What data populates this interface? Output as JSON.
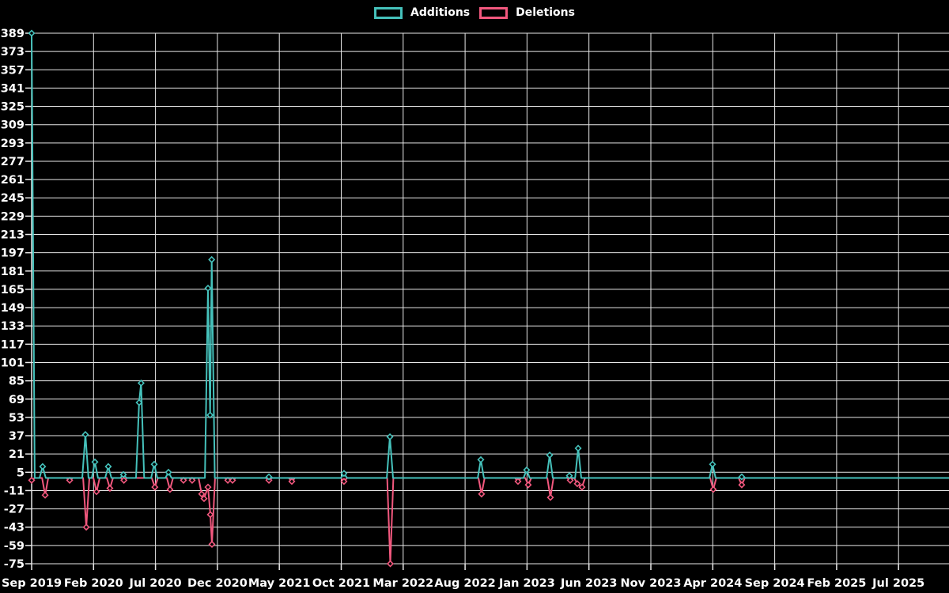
{
  "legend": {
    "items": [
      {
        "label": "Additions",
        "series": "additions"
      },
      {
        "label": "Deletions",
        "series": "deletions"
      }
    ]
  },
  "colors": {
    "additions": "#45c1bb",
    "deletions": "#f2587e",
    "grid": "#e8e8e8",
    "axis_text": "#ffffff",
    "background": "#000000"
  },
  "chart_data": {
    "type": "line",
    "title": "",
    "xlabel": "",
    "ylabel": "",
    "grid": true,
    "legend_position": "top-center",
    "x_axis": {
      "labels": [
        "Sep 2019",
        "Feb 2020",
        "Jul 2020",
        "Dec 2020",
        "May 2021",
        "Oct 2021",
        "Mar 2022",
        "Aug 2022",
        "Jan 2023",
        "Jun 2023",
        "Nov 2023",
        "Apr 2024",
        "Sep 2024",
        "Feb 2025",
        "Jul 2025"
      ],
      "label_interval_months": 5,
      "unit": "months since Sep 2019",
      "x_end_months": 74.2
    },
    "y_axis": {
      "min": -75,
      "max": 389,
      "step": 16,
      "ticks": [
        389,
        373,
        357,
        341,
        325,
        309,
        293,
        277,
        261,
        245,
        229,
        213,
        197,
        181,
        165,
        149,
        133,
        117,
        101,
        85,
        69,
        53,
        37,
        21,
        5,
        -11,
        -27,
        -43,
        -59,
        -75
      ]
    },
    "baseline": 0,
    "series": [
      {
        "name": "Additions",
        "color_key": "additions",
        "points": [
          [
            0,
            389
          ],
          [
            0.89,
            10
          ],
          [
            4.34,
            38
          ],
          [
            5.11,
            14
          ],
          [
            6.19,
            10
          ],
          [
            7.41,
            3
          ],
          [
            8.68,
            66
          ],
          [
            8.84,
            83
          ],
          [
            9.9,
            12
          ],
          [
            11.05,
            5
          ],
          [
            14.24,
            166
          ],
          [
            14.41,
            55
          ],
          [
            14.54,
            191
          ],
          [
            19.16,
            1
          ],
          [
            25.22,
            4
          ],
          [
            28.93,
            36
          ],
          [
            36.27,
            16
          ],
          [
            39.97,
            7
          ],
          [
            41.83,
            20
          ],
          [
            43.42,
            2
          ],
          [
            44.13,
            26
          ],
          [
            54.98,
            12
          ],
          [
            57.34,
            1
          ]
        ]
      },
      {
        "name": "Deletions",
        "color_key": "deletions",
        "points": [
          [
            0,
            -2
          ],
          [
            1.09,
            -15
          ],
          [
            3.07,
            -2
          ],
          [
            4.41,
            -43
          ],
          [
            5.24,
            -12
          ],
          [
            6.32,
            -9
          ],
          [
            7.45,
            -2
          ],
          [
            9.95,
            -8
          ],
          [
            11.17,
            -10
          ],
          [
            12.26,
            -2
          ],
          [
            12.96,
            -2
          ],
          [
            13.73,
            -14
          ],
          [
            13.92,
            -18
          ],
          [
            14.24,
            -8
          ],
          [
            14.43,
            -32
          ],
          [
            14.56,
            -58
          ],
          [
            15.84,
            -2
          ],
          [
            16.22,
            -2
          ],
          [
            19.16,
            -2
          ],
          [
            21.01,
            -3
          ],
          [
            25.22,
            -3
          ],
          [
            28.96,
            -75
          ],
          [
            36.33,
            -14
          ],
          [
            39.27,
            -3
          ],
          [
            40.1,
            -6
          ],
          [
            41.89,
            -17
          ],
          [
            43.49,
            -2
          ],
          [
            44.06,
            -5
          ],
          [
            44.44,
            -8
          ],
          [
            55.04,
            -10
          ],
          [
            57.34,
            -6
          ]
        ]
      }
    ]
  }
}
